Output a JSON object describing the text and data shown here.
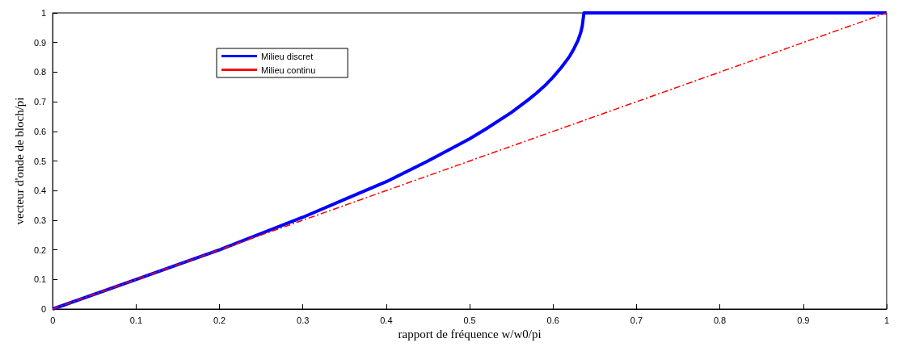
{
  "chart_data": {
    "type": "line",
    "xlabel": "rapport de fréquence w/w0/pi",
    "ylabel": "vecteur d'onde de bloch/pi",
    "xlim": [
      0,
      1
    ],
    "ylim": [
      0,
      1
    ],
    "xticks": [
      0,
      0.1,
      0.2,
      0.3,
      0.4,
      0.5,
      0.6,
      0.7,
      0.8,
      0.9,
      1
    ],
    "yticks": [
      0,
      0.1,
      0.2,
      0.3,
      0.4,
      0.5,
      0.6,
      0.7,
      0.8,
      0.9,
      1
    ],
    "grid": false,
    "legend": "top left",
    "marker": "none",
    "series": [
      {
        "name": "Milieu discret",
        "color": "#0000ff",
        "line_style": "solid",
        "x": [
          0,
          0.1,
          0.2,
          0.25,
          0.3,
          0.35,
          0.4,
          0.45,
          0.5,
          0.52,
          0.55,
          0.56,
          0.57,
          0.58,
          0.59,
          0.6,
          0.61,
          0.62,
          0.625,
          0.63,
          0.633,
          0.635,
          0.637,
          0.7,
          0.8,
          0.9,
          1
        ],
        "values": [
          0,
          0.1,
          0.2,
          0.255,
          0.31,
          0.37,
          0.43,
          0.5,
          0.575,
          0.609,
          0.664,
          0.685,
          0.706,
          0.729,
          0.754,
          0.783,
          0.816,
          0.854,
          0.879,
          0.908,
          0.932,
          0.955,
          1,
          1,
          1,
          1,
          1
        ]
      },
      {
        "name": "Milieu continu",
        "color": "#ff0000",
        "line_style": "dashed",
        "x": [
          0,
          1
        ],
        "values": [
          0,
          1
        ]
      }
    ]
  }
}
